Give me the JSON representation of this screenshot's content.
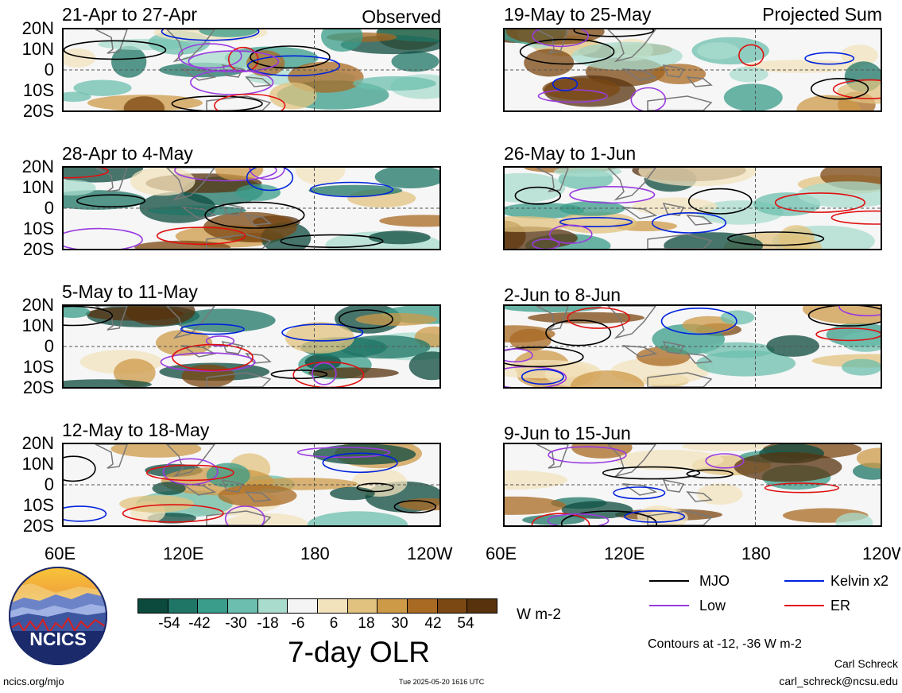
{
  "panels": [
    {
      "title": "21-Apr to 27-Apr",
      "tag": "Observed"
    },
    {
      "title": "28-Apr to 4-May",
      "tag": ""
    },
    {
      "title": "5-May to 11-May",
      "tag": ""
    },
    {
      "title": "12-May to 18-May",
      "tag": ""
    },
    {
      "title": "19-May to 25-May",
      "tag": "Projected Sum"
    },
    {
      "title": "26-May to 1-Jun",
      "tag": ""
    },
    {
      "title": "2-Jun to 8-Jun",
      "tag": ""
    },
    {
      "title": "9-Jun to 15-Jun",
      "tag": ""
    }
  ],
  "lat_labels": [
    "20N",
    "10N",
    "0",
    "10S",
    "20S"
  ],
  "lon_labels": [
    "60E",
    "120E",
    "180",
    "120W"
  ],
  "colorbar": {
    "colors": [
      "#0c4a3e",
      "#1f7566",
      "#3a9c8a",
      "#6cbfae",
      "#a9dccd",
      "#f4f4f4",
      "#f3e3bd",
      "#e1c37f",
      "#cd9a48",
      "#a96a23",
      "#7b4712",
      "#57320d"
    ],
    "tick_labels": [
      "-54",
      "-42",
      "-30",
      "-18",
      "-6",
      "6",
      "18",
      "30",
      "42",
      "54"
    ],
    "unit": "W m-2",
    "title": "7-day OLR"
  },
  "legend": {
    "items": [
      {
        "label": "MJO",
        "color": "#000000"
      },
      {
        "label": "Kelvin x2",
        "color": "#0022dd"
      },
      {
        "label": "Low",
        "color": "#9a3be0"
      },
      {
        "label": "ER",
        "color": "#e01010"
      }
    ],
    "contours_note": "Contours at -12, -36 W m-2"
  },
  "logo": {
    "text": "NCICS"
  },
  "footer": {
    "site": "ncics.org/mjo",
    "timestamp": "Tue 2025-05-20 1616 UTC",
    "author": "Carl Schreck",
    "email": "carl_schreck@ncsu.edu"
  }
}
